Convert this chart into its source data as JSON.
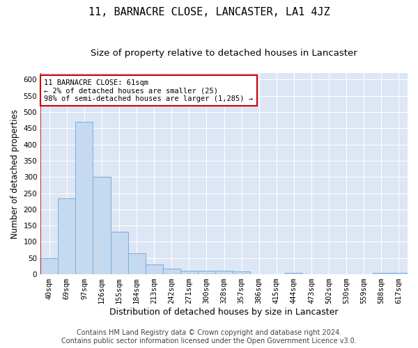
{
  "title": "11, BARNACRE CLOSE, LANCASTER, LA1 4JZ",
  "subtitle": "Size of property relative to detached houses in Lancaster",
  "xlabel": "Distribution of detached houses by size in Lancaster",
  "ylabel": "Number of detached properties",
  "footer_line1": "Contains HM Land Registry data © Crown copyright and database right 2024.",
  "footer_line2": "Contains public sector information licensed under the Open Government Licence v3.0.",
  "bar_labels": [
    "40sqm",
    "69sqm",
    "97sqm",
    "126sqm",
    "155sqm",
    "184sqm",
    "213sqm",
    "242sqm",
    "271sqm",
    "300sqm",
    "328sqm",
    "357sqm",
    "386sqm",
    "415sqm",
    "444sqm",
    "473sqm",
    "502sqm",
    "530sqm",
    "559sqm",
    "588sqm",
    "617sqm"
  ],
  "bar_values": [
    50,
    235,
    470,
    300,
    130,
    65,
    30,
    17,
    10,
    10,
    10,
    8,
    0,
    0,
    5,
    0,
    0,
    0,
    0,
    5,
    5
  ],
  "bar_color": "#c5d9f0",
  "bar_edge_color": "#7aaddb",
  "background_color": "#dce6f5",
  "grid_color": "#ffffff",
  "annotation_box_text": "11 BARNACRE CLOSE: 61sqm\n← 2% of detached houses are smaller (25)\n98% of semi-detached houses are larger (1,285) →",
  "annotation_box_color": "#cc0000",
  "highlight_line_color": "#cc0000",
  "ylim": [
    0,
    620
  ],
  "yticks": [
    0,
    50,
    100,
    150,
    200,
    250,
    300,
    350,
    400,
    450,
    500,
    550,
    600
  ],
  "title_fontsize": 11,
  "subtitle_fontsize": 9.5,
  "xlabel_fontsize": 9,
  "ylabel_fontsize": 8.5,
  "tick_fontsize": 7.5,
  "footer_fontsize": 7
}
